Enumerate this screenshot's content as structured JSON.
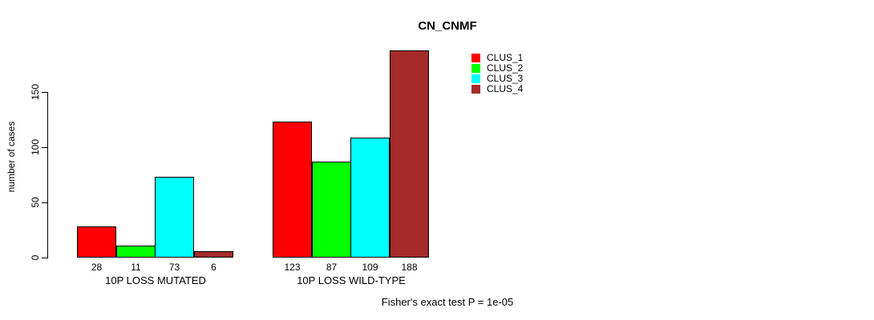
{
  "chart_data": {
    "type": "bar",
    "title": "CN_CNMF",
    "ylabel": "number of cases",
    "xlabel": "",
    "categories": [
      "10P LOSS MUTATED",
      "10P LOSS WILD-TYPE"
    ],
    "series": [
      {
        "name": "CLUS_1",
        "color": "#FF0000",
        "values": [
          28,
          123
        ]
      },
      {
        "name": "CLUS_2",
        "color": "#00FF00",
        "values": [
          11,
          87
        ]
      },
      {
        "name": "CLUS_3",
        "color": "#00FFFF",
        "values": [
          73,
          109
        ]
      },
      {
        "name": "CLUS_4",
        "color": "#A52A2A",
        "values": [
          6,
          188
        ]
      }
    ],
    "yticks": [
      0,
      50,
      100,
      150
    ],
    "ylim": [
      0,
      195
    ],
    "grid": false,
    "bar_value_labels_shown": true,
    "legend_position": "top-right",
    "annotation": "Fisher's exact test P = 1e-05"
  }
}
